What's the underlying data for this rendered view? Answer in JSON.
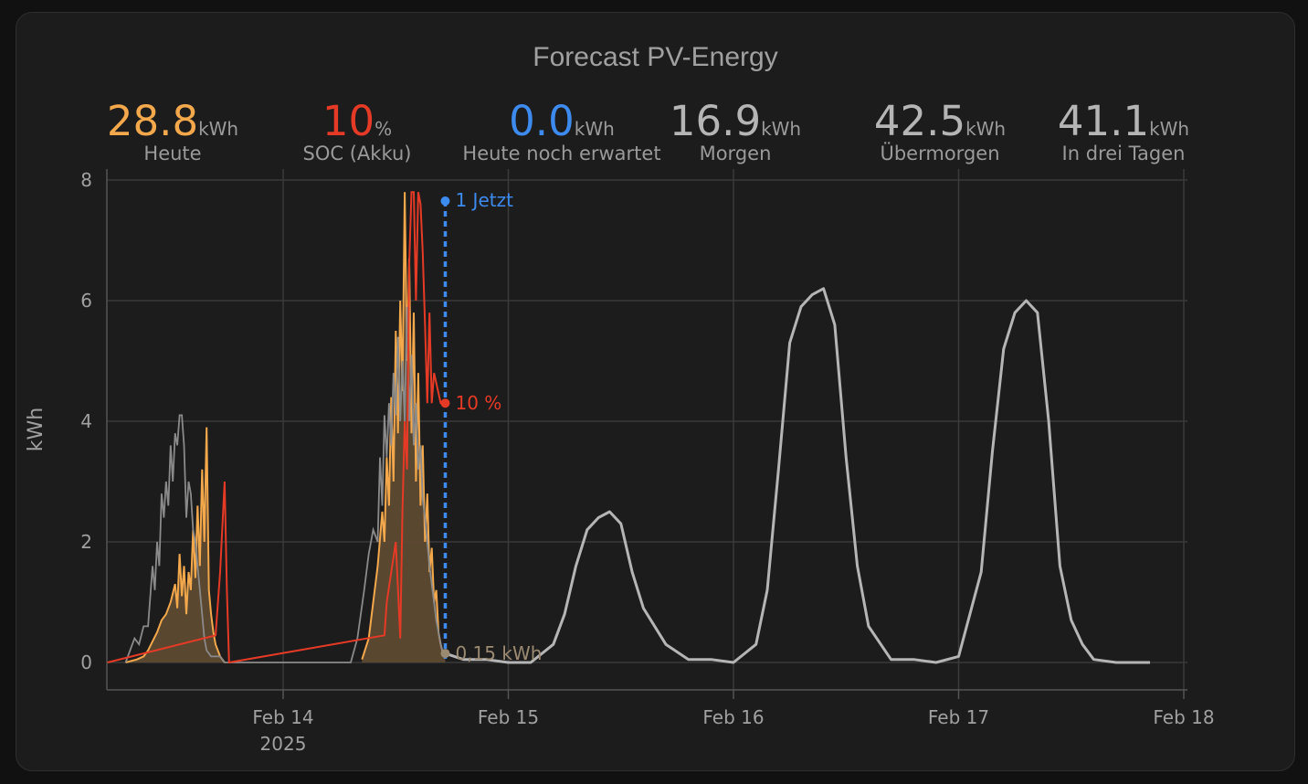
{
  "title": "Forecast PV-Energy",
  "stats": [
    {
      "value": "28.8",
      "unit": "kWh",
      "label": "Heute",
      "color": "#f4a84c"
    },
    {
      "value": "10",
      "unit": "%",
      "label": "SOC (Akku)",
      "color": "#e53a26"
    },
    {
      "value": "0.0",
      "unit": "kWh",
      "label": "Heute noch erwartet",
      "color": "#3d8bef"
    },
    {
      "value": "16.9",
      "unit": "kWh",
      "label": "Morgen",
      "color": "#b5b5b5"
    },
    {
      "value": "42.5",
      "unit": "kWh",
      "label": "Übermorgen",
      "color": "#b5b5b5"
    },
    {
      "value": "41.1",
      "unit": "kWh",
      "label": "In drei Tagen",
      "color": "#b5b5b5"
    }
  ],
  "chart_data": {
    "type": "line",
    "ylabel": "kWh",
    "ylim": [
      0,
      8
    ],
    "yticks": [
      "0",
      "2",
      "4",
      "6",
      "8"
    ],
    "xlim": [
      13.22,
      18.02
    ],
    "xticks": [
      {
        "x": 14,
        "label": "Feb 14",
        "sublabel": "2025"
      },
      {
        "x": 15,
        "label": "Feb 15",
        "sublabel": ""
      },
      {
        "x": 16,
        "label": "Feb 16",
        "sublabel": ""
      },
      {
        "x": 17,
        "label": "Feb 17",
        "sublabel": ""
      },
      {
        "x": 18,
        "label": "Feb 18",
        "sublabel": ""
      }
    ],
    "grid": true,
    "now_marker": {
      "x": 14.72,
      "label": "1 Jetzt",
      "color": "#3d8bef"
    },
    "annotations": [
      {
        "x": 14.72,
        "y": 4.3,
        "label": "10 %",
        "color": "#e53a26"
      },
      {
        "x": 14.72,
        "y": 0.15,
        "label": "0,15 kWh",
        "color": "#9b8a72"
      }
    ],
    "colors": {
      "production": "#f4a84c",
      "production_fill": "#5e4a32",
      "soc": "#e53a26",
      "forecast": "#b5b5b5",
      "history_forecast": "#8a8a8a"
    },
    "series": [
      {
        "role": "production",
        "x": [
          13.3,
          13.35,
          13.38,
          13.4,
          13.42,
          13.44,
          13.46,
          13.48,
          13.5,
          13.52,
          13.53,
          13.54,
          13.55,
          13.56,
          13.57,
          13.58,
          13.59,
          13.6,
          13.61,
          13.62,
          13.63,
          13.64,
          13.65,
          13.66,
          13.67,
          13.68,
          13.69,
          13.7,
          13.72,
          13.74,
          14.35,
          14.38,
          14.4,
          14.42,
          14.44,
          14.45,
          14.46,
          14.47,
          14.48,
          14.49,
          14.5,
          14.51,
          14.52,
          14.53,
          14.54,
          14.55,
          14.56,
          14.57,
          14.58,
          14.59,
          14.6,
          14.61,
          14.62,
          14.63,
          14.64,
          14.65,
          14.66,
          14.67,
          14.68,
          14.69,
          14.7,
          14.71,
          14.72
        ],
        "y": [
          0,
          0.05,
          0.1,
          0.2,
          0.35,
          0.5,
          0.7,
          0.8,
          1.0,
          1.3,
          0.9,
          1.8,
          1.1,
          1.6,
          0.8,
          1.5,
          1.2,
          2.2,
          1.4,
          2.6,
          1.6,
          3.2,
          2.0,
          3.9,
          1.2,
          0.8,
          0.5,
          0.3,
          0.1,
          0,
          0.05,
          0.4,
          1.0,
          1.6,
          2.5,
          2.0,
          3.4,
          2.6,
          4.4,
          3.0,
          5.5,
          3.8,
          6.0,
          4.5,
          7.8,
          5.0,
          6.7,
          3.8,
          5.8,
          3.0,
          4.8,
          2.6,
          3.6,
          2.0,
          2.8,
          1.5,
          1.9,
          1.0,
          1.2,
          0.5,
          0.3,
          0.15,
          0.15
        ]
      },
      {
        "role": "soc",
        "x": [
          13.22,
          13.7,
          13.72,
          13.74,
          13.75,
          13.76,
          14.45,
          14.46,
          14.5,
          14.52,
          14.53,
          14.54,
          14.55,
          14.56,
          14.57,
          14.58,
          14.59,
          14.6,
          14.61,
          14.62,
          14.63,
          14.64,
          14.65,
          14.66,
          14.67,
          14.7,
          14.72
        ],
        "y": [
          0,
          0.45,
          1.5,
          3.0,
          1.2,
          0,
          0.45,
          1.0,
          2.0,
          0.4,
          2.5,
          4.0,
          3.2,
          6.6,
          7.8,
          7.8,
          6.0,
          7.8,
          7.6,
          6.8,
          5.6,
          4.3,
          5.8,
          4.3,
          4.8,
          4.3,
          4.3
        ]
      },
      {
        "role": "history_forecast",
        "x": [
          13.3,
          13.34,
          13.36,
          13.38,
          13.4,
          13.42,
          13.43,
          13.44,
          13.45,
          13.46,
          13.47,
          13.48,
          13.49,
          13.5,
          13.51,
          13.52,
          13.53,
          13.54,
          13.55,
          13.56,
          13.57,
          13.58,
          13.59,
          13.6,
          13.61,
          13.62,
          13.63,
          13.64,
          13.65,
          13.66,
          13.68,
          13.7,
          13.72,
          13.74,
          14.1,
          14.3,
          14.33,
          14.36,
          14.38,
          14.4,
          14.42,
          14.43,
          14.44,
          14.45,
          14.46,
          14.47,
          14.48,
          14.49,
          14.5,
          14.51,
          14.52,
          14.53,
          14.54,
          14.55,
          14.56,
          14.57,
          14.58,
          14.59,
          14.6,
          14.61,
          14.62,
          14.63,
          14.64,
          14.65,
          14.66,
          14.67,
          14.68,
          14.69,
          14.7,
          14.71
        ],
        "y": [
          0,
          0.4,
          0.3,
          0.6,
          0.6,
          1.6,
          1.2,
          2.0,
          1.6,
          2.8,
          2.4,
          3.0,
          2.6,
          3.6,
          3.0,
          3.8,
          3.6,
          4.1,
          4.1,
          3.6,
          2.4,
          3.0,
          2.8,
          2.2,
          2.0,
          1.6,
          1.2,
          0.8,
          0.4,
          0.2,
          0.1,
          0.1,
          0.1,
          0,
          0,
          0,
          0.4,
          1.2,
          1.8,
          2.2,
          2.0,
          3.4,
          2.6,
          4.1,
          3.4,
          4.3,
          3.6,
          4.8,
          4.1,
          5.4,
          4.0,
          5.0,
          4.0,
          5.9,
          4.0,
          5.1,
          3.6,
          4.3,
          3.2,
          3.6,
          2.7,
          2.4,
          2.0,
          1.6,
          1.3,
          1.0,
          0.7,
          0.5,
          0.3,
          0.15
        ]
      },
      {
        "role": "forecast",
        "x": [
          14.72,
          14.8,
          14.9,
          15.0,
          15.1,
          15.2,
          15.25,
          15.3,
          15.35,
          15.4,
          15.45,
          15.5,
          15.55,
          15.6,
          15.7,
          15.8,
          15.9,
          16.0,
          16.1,
          16.15,
          16.2,
          16.25,
          16.3,
          16.35,
          16.4,
          16.45,
          16.5,
          16.55,
          16.6,
          16.7,
          16.8,
          16.9,
          17.0,
          17.1,
          17.15,
          17.2,
          17.25,
          17.3,
          17.35,
          17.4,
          17.45,
          17.5,
          17.55,
          17.6,
          17.7,
          17.8,
          17.85
        ],
        "y": [
          0.15,
          0.05,
          0.05,
          0,
          0,
          0.3,
          0.8,
          1.6,
          2.2,
          2.4,
          2.5,
          2.3,
          1.5,
          0.9,
          0.3,
          0.05,
          0.05,
          0,
          0.3,
          1.2,
          3.2,
          5.3,
          5.9,
          6.1,
          6.2,
          5.6,
          3.4,
          1.6,
          0.6,
          0.05,
          0.05,
          0,
          0.1,
          1.5,
          3.5,
          5.2,
          5.8,
          6.0,
          5.8,
          4.0,
          1.6,
          0.7,
          0.3,
          0.05,
          0,
          0,
          0
        ]
      }
    ]
  }
}
